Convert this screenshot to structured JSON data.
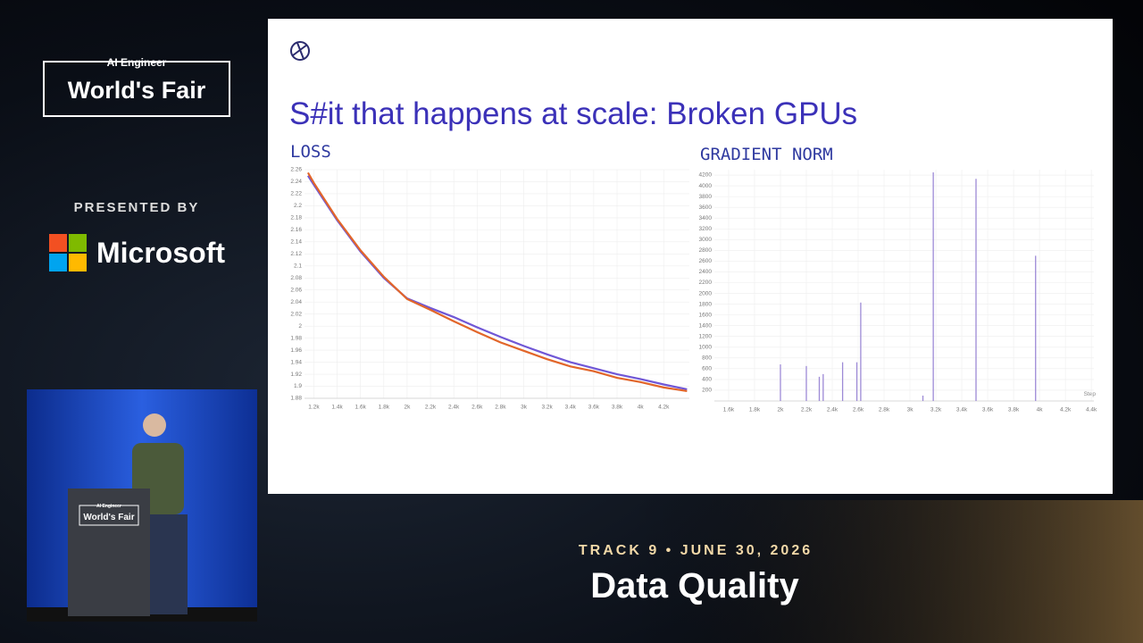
{
  "event": {
    "brand_top": "AI Engineer",
    "brand_main": "World's Fair",
    "presented_by": "PRESENTED BY",
    "sponsor": "Microsoft"
  },
  "video": {
    "podium_top": "AI Engineer",
    "podium_main": "World's Fair"
  },
  "slide": {
    "title": "S#it that happens at scale: Broken GPUs"
  },
  "chart_data": [
    {
      "type": "line",
      "title": "LOSS",
      "x": [
        1150,
        1200,
        1400,
        1600,
        1800,
        2000,
        2200,
        2400,
        2600,
        2800,
        3000,
        3200,
        3400,
        3600,
        3800,
        4000,
        4200,
        4400
      ],
      "series": [
        {
          "color": "#7057d6",
          "values": [
            2.25,
            2.235,
            2.176,
            2.124,
            2.08,
            2.046,
            2.03,
            2.015,
            1.998,
            1.982,
            1.967,
            1.953,
            1.94,
            1.93,
            1.92,
            1.912,
            1.903,
            1.895
          ]
        },
        {
          "color": "#e2662a",
          "values": [
            2.255,
            2.238,
            2.178,
            2.126,
            2.082,
            2.045,
            2.027,
            2.008,
            1.99,
            1.973,
            1.959,
            1.945,
            1.933,
            1.925,
            1.914,
            1.907,
            1.898,
            1.892
          ]
        }
      ],
      "xlim": [
        1120,
        4420
      ],
      "ylim": [
        1.88,
        2.26
      ],
      "xticks": [
        {
          "value": 1200,
          "label": "1.2k"
        },
        {
          "value": 1400,
          "label": "1.4k"
        },
        {
          "value": 1600,
          "label": "1.6k"
        },
        {
          "value": 1800,
          "label": "1.8k"
        },
        {
          "value": 2000,
          "label": "2k"
        },
        {
          "value": 2200,
          "label": "2.2k"
        },
        {
          "value": 2400,
          "label": "2.4k"
        },
        {
          "value": 2600,
          "label": "2.6k"
        },
        {
          "value": 2800,
          "label": "2.8k"
        },
        {
          "value": 3000,
          "label": "3k"
        },
        {
          "value": 3200,
          "label": "3.2k"
        },
        {
          "value": 3400,
          "label": "3.4k"
        },
        {
          "value": 3600,
          "label": "3.6k"
        },
        {
          "value": 3800,
          "label": "3.8k"
        },
        {
          "value": 4000,
          "label": "4k"
        },
        {
          "value": 4200,
          "label": "4.2k"
        }
      ],
      "yticks": [
        1.88,
        1.9,
        1.92,
        1.94,
        1.96,
        1.98,
        2,
        2.02,
        2.04,
        2.06,
        2.08,
        2.1,
        2.12,
        2.14,
        2.16,
        2.18,
        2.2,
        2.22,
        2.24,
        2.26
      ],
      "grid": true
    },
    {
      "type": "stem",
      "title": "GRADIENT NORM",
      "xlabel": "Step",
      "color": "#9d8ad6",
      "x": [
        2000,
        2200,
        2300,
        2330,
        2480,
        2590,
        2620,
        3100,
        3180,
        3510,
        3970
      ],
      "values": [
        680,
        650,
        450,
        500,
        720,
        720,
        1830,
        100,
        4250,
        4130,
        2700
      ],
      "xlim": [
        1490,
        4420
      ],
      "ylim": [
        0,
        4300
      ],
      "xticks": [
        {
          "value": 1600,
          "label": "1.6k"
        },
        {
          "value": 1800,
          "label": "1.8k"
        },
        {
          "value": 2000,
          "label": "2k"
        },
        {
          "value": 2200,
          "label": "2.2k"
        },
        {
          "value": 2400,
          "label": "2.4k"
        },
        {
          "value": 2600,
          "label": "2.6k"
        },
        {
          "value": 2800,
          "label": "2.8k"
        },
        {
          "value": 3000,
          "label": "3k"
        },
        {
          "value": 3200,
          "label": "3.2k"
        },
        {
          "value": 3400,
          "label": "3.4k"
        },
        {
          "value": 3600,
          "label": "3.6k"
        },
        {
          "value": 3800,
          "label": "3.8k"
        },
        {
          "value": 4000,
          "label": "4k"
        },
        {
          "value": 4200,
          "label": "4.2k"
        },
        {
          "value": 4400,
          "label": "4.4k"
        }
      ],
      "yticks": [
        200,
        400,
        600,
        800,
        1000,
        1200,
        1400,
        1600,
        1800,
        2000,
        2200,
        2400,
        2600,
        2800,
        3000,
        3200,
        3400,
        3600,
        3800,
        4000,
        4200
      ],
      "grid": true
    }
  ],
  "footer": {
    "track": "TRACK 9 • JUNE 30, 2026",
    "talk": "Data Quality"
  }
}
